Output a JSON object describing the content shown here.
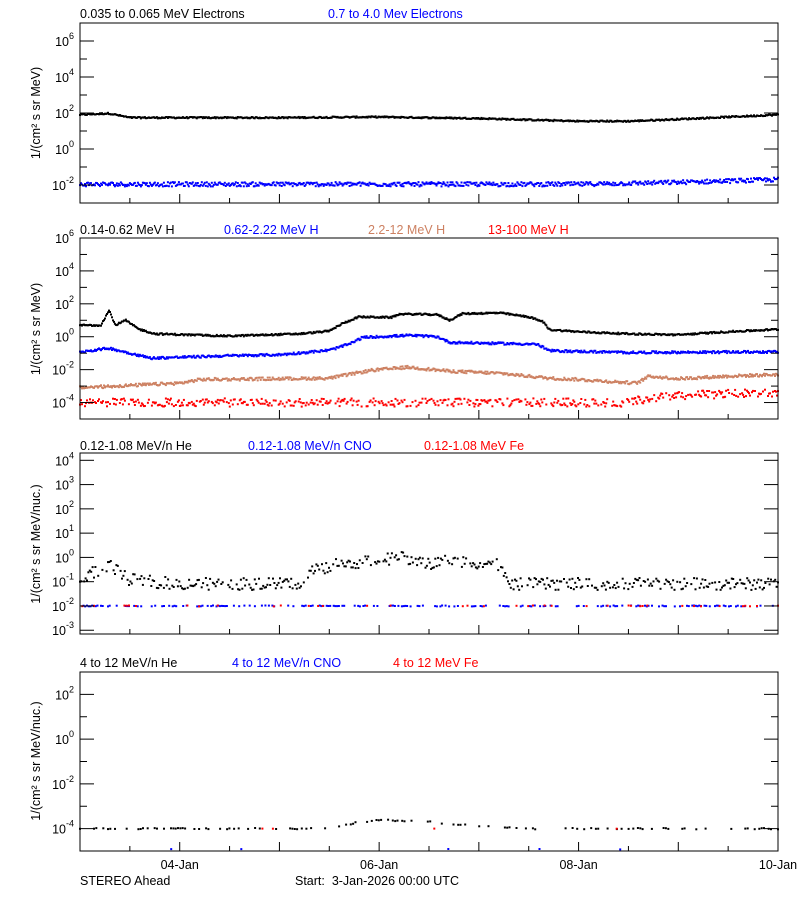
{
  "chart_data": [
    {
      "type": "scatter",
      "ylabel": "1/(cm² s sr MeV)",
      "yscale": "log",
      "ylim": [
        0.001,
        10000000
      ],
      "ytick_exponents": [
        -2,
        0,
        2,
        4,
        6
      ],
      "legend_placement": "top-left",
      "series": [
        {
          "name": "0.035 to 0.065 MeV Electrons",
          "color": "#000000",
          "points": [
            [
              "2026-01-03T00:00",
              80
            ],
            [
              "2026-01-03T07:00",
              95
            ],
            [
              "2026-01-03T12:00",
              55
            ],
            [
              "2026-01-04T00:00",
              55
            ],
            [
              "2026-01-05T00:00",
              55
            ],
            [
              "2026-01-06T00:00",
              60
            ],
            [
              "2026-01-07T00:00",
              50
            ],
            [
              "2026-01-08T00:00",
              35
            ],
            [
              "2026-01-08T12:00",
              35
            ],
            [
              "2026-01-09T00:00",
              45
            ],
            [
              "2026-01-10T00:00",
              80
            ]
          ]
        },
        {
          "name": "0.7 to 4.0 Mev Electrons",
          "color": "#0000ff",
          "points": [
            [
              "2026-01-03T00:00",
              0.011
            ],
            [
              "2026-01-05T00:00",
              0.011
            ],
            [
              "2026-01-08T00:00",
              0.011
            ],
            [
              "2026-01-09T00:00",
              0.014
            ],
            [
              "2026-01-10T00:00",
              0.02
            ]
          ]
        }
      ]
    },
    {
      "type": "scatter",
      "ylabel": "1/(cm² s sr MeV)",
      "yscale": "log",
      "ylim": [
        1e-05,
        1000000
      ],
      "ytick_exponents": [
        -4,
        -2,
        0,
        2,
        4,
        6
      ],
      "legend_placement": "top-left",
      "series": [
        {
          "name": "0.14-0.62 MeV H",
          "color": "#000000",
          "points": [
            [
              "2026-01-03T00:00",
              5
            ],
            [
              "2026-01-03T05:00",
              5
            ],
            [
              "2026-01-03T07:00",
              40
            ],
            [
              "2026-01-03T08:30",
              5
            ],
            [
              "2026-01-03T11:00",
              10
            ],
            [
              "2026-01-03T14:00",
              3
            ],
            [
              "2026-01-03T18:00",
              1.5
            ],
            [
              "2026-01-04T12:00",
              1.1
            ],
            [
              "2026-01-05T05:00",
              1.5
            ],
            [
              "2026-01-05T12:00",
              2.2
            ],
            [
              "2026-01-05T15:00",
              6
            ],
            [
              "2026-01-05T19:00",
              16
            ],
            [
              "2026-01-06T03:00",
              15
            ],
            [
              "2026-01-06T05:00",
              24
            ],
            [
              "2026-01-06T14:00",
              22
            ],
            [
              "2026-01-06T17:00",
              10
            ],
            [
              "2026-01-06T20:00",
              25
            ],
            [
              "2026-01-07T05:00",
              28
            ],
            [
              "2026-01-07T12:00",
              16
            ],
            [
              "2026-01-07T15:30",
              8
            ],
            [
              "2026-01-07T17:00",
              2.7
            ],
            [
              "2026-01-08T00:00",
              2
            ],
            [
              "2026-01-08T12:00",
              1.5
            ],
            [
              "2026-01-09T00:00",
              1.3
            ],
            [
              "2026-01-09T12:00",
              2
            ],
            [
              "2026-01-10T00:00",
              2.8
            ]
          ]
        },
        {
          "name": "0.62-2.22 MeV H",
          "color": "#0000ff",
          "points": [
            [
              "2026-01-03T00:00",
              0.12
            ],
            [
              "2026-01-03T07:00",
              0.2
            ],
            [
              "2026-01-03T17:00",
              0.05
            ],
            [
              "2026-01-04T12:00",
              0.07
            ],
            [
              "2026-01-05T00:00",
              0.08
            ],
            [
              "2026-01-05T12:00",
              0.15
            ],
            [
              "2026-01-05T17:00",
              0.37
            ],
            [
              "2026-01-05T20:00",
              0.9
            ],
            [
              "2026-01-06T07:00",
              1.2
            ],
            [
              "2026-01-06T14:00",
              1.0
            ],
            [
              "2026-01-06T17:00",
              0.45
            ],
            [
              "2026-01-07T14:00",
              0.35
            ],
            [
              "2026-01-07T17:00",
              0.14
            ],
            [
              "2026-01-08T12:00",
              0.11
            ],
            [
              "2026-01-10T00:00",
              0.12
            ]
          ]
        },
        {
          "name": "2.2-12 MeV H",
          "color": "#cd8162",
          "points": [
            [
              "2026-01-03T00:00",
              0.0008
            ],
            [
              "2026-01-04T00:00",
              0.0015
            ],
            [
              "2026-01-04T05:00",
              0.0025
            ],
            [
              "2026-01-05T12:00",
              0.003
            ],
            [
              "2026-01-05T22:00",
              0.009
            ],
            [
              "2026-01-06T07:00",
              0.014
            ],
            [
              "2026-01-06T17:00",
              0.008
            ],
            [
              "2026-01-07T05:00",
              0.006
            ],
            [
              "2026-01-07T17:00",
              0.003
            ],
            [
              "2026-01-08T00:00",
              0.0025
            ],
            [
              "2026-01-08T14:00",
              0.0015
            ],
            [
              "2026-01-08T17:00",
              0.004
            ],
            [
              "2026-01-09T00:00",
              0.0028
            ],
            [
              "2026-01-09T12:00",
              0.004
            ],
            [
              "2026-01-10T00:00",
              0.005
            ]
          ]
        },
        {
          "name": "13-100 MeV H",
          "color": "#ff0000",
          "points": [
            [
              "2026-01-03T00:00",
              0.0001
            ],
            [
              "2026-01-08T12:00",
              0.0001
            ],
            [
              "2026-01-08T18:00",
              0.0002
            ],
            [
              "2026-01-09T06:00",
              0.0003
            ],
            [
              "2026-01-10T00:00",
              0.0004
            ]
          ]
        }
      ]
    },
    {
      "type": "scatter",
      "ylabel": "1/(cm² s sr MeV/nuc.)",
      "yscale": "log",
      "ylim": [
        0.0007,
        20000
      ],
      "ytick_exponents": [
        -3,
        -2,
        -1,
        0,
        1,
        2,
        3,
        4
      ],
      "legend_placement": "top-left",
      "series": [
        {
          "name": "0.12-1.08 MeV/n He",
          "color": "#000000",
          "points": [
            [
              "2026-01-03T00:00",
              0.15
            ],
            [
              "2026-01-03T07:00",
              0.45
            ],
            [
              "2026-01-03T12:00",
              0.12
            ],
            [
              "2026-01-04T00:00",
              0.08
            ],
            [
              "2026-01-05T05:00",
              0.08
            ],
            [
              "2026-01-05T08:00",
              0.3
            ],
            [
              "2026-01-05T14:00",
              0.5
            ],
            [
              "2026-01-06T00:00",
              0.8
            ],
            [
              "2026-01-06T05:00",
              1.0
            ],
            [
              "2026-01-06T12:00",
              0.5
            ],
            [
              "2026-01-06T17:00",
              0.8
            ],
            [
              "2026-01-07T05:00",
              0.5
            ],
            [
              "2026-01-07T07:00",
              0.08
            ],
            [
              "2026-01-10T00:00",
              0.08
            ]
          ]
        },
        {
          "name": "0.12-1.08 MeV/n CNO",
          "color": "#0000ff",
          "points": [
            [
              "2026-01-03T00:00",
              0.01
            ],
            [
              "2026-01-10T00:00",
              0.01
            ]
          ]
        },
        {
          "name": "0.12-1.08 MeV Fe",
          "color": "#ff0000",
          "points": [
            [
              "2026-01-03T00:00",
              0.01
            ],
            [
              "2026-01-10T00:00",
              0.01
            ]
          ]
        }
      ]
    },
    {
      "type": "scatter",
      "ylabel": "1/(cm² s sr MeV/nuc.)",
      "yscale": "log",
      "ylim": [
        1e-05,
        1000
      ],
      "ytick_exponents": [
        -4,
        -2,
        0,
        2
      ],
      "legend_placement": "top-left",
      "series": [
        {
          "name": "4 to 12 MeV/n He",
          "color": "#000000",
          "points": [
            [
              "2026-01-03T00:00",
              0.0001
            ],
            [
              "2026-01-05T12:00",
              0.0001
            ],
            [
              "2026-01-05T18:00",
              0.00018
            ],
            [
              "2026-01-06T00:00",
              0.00025
            ],
            [
              "2026-01-06T12:00",
              0.0002
            ],
            [
              "2026-01-07T00:00",
              0.00013
            ],
            [
              "2026-01-07T12:00",
              0.0001
            ],
            [
              "2026-01-10T00:00",
              0.0001
            ]
          ]
        },
        {
          "name": "4 to 12 MeV/n CNO",
          "color": "#0000ff",
          "points": [
            [
              "2026-01-03T00:00",
              1.2e-05
            ],
            [
              "2026-01-10T00:00",
              1.2e-05
            ]
          ]
        },
        {
          "name": "4 to 12 MeV Fe",
          "color": "#ff0000",
          "points": [
            [
              "2026-01-03T00:00",
              0.0001
            ],
            [
              "2026-01-10T00:00",
              0.0001
            ]
          ]
        }
      ]
    }
  ],
  "xaxis": {
    "start": "2026-01-03T00:00",
    "end": "2026-01-10T00:00",
    "tick_labels": [
      {
        "date": "2026-01-04T00:00",
        "label": "04-Jan"
      },
      {
        "date": "2026-01-06T00:00",
        "label": "06-Jan"
      },
      {
        "date": "2026-01-08T00:00",
        "label": "08-Jan"
      },
      {
        "date": "2026-01-10T00:00",
        "label": "10-Jan"
      }
    ]
  },
  "footer": {
    "spacecraft": "STEREO Ahead",
    "start_label": "Start:  3-Jan-2026 00:00 UTC"
  }
}
